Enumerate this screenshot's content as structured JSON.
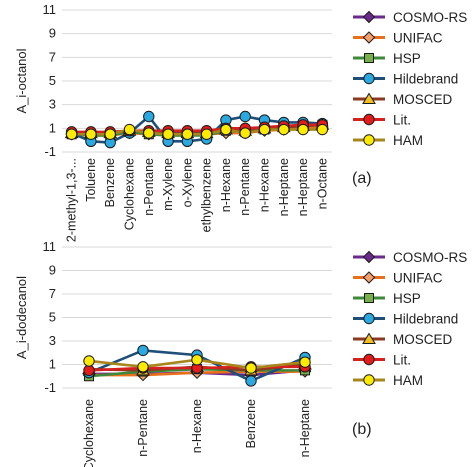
{
  "colors": {
    "COSMO-RS": "#6b2a8a",
    "UNIFAC": "#e8701a",
    "HSP": "#3f8a3a",
    "Hildebrand": "#1f4e79",
    "MOSCED": "#8b3a1f",
    "Lit.": "#d62020",
    "HAM": "#a8861c"
  },
  "chart_data": [
    {
      "type": "line",
      "panel_label": "(a)",
      "ylabel": "A_i-octanol",
      "ylim": [
        -1,
        11
      ],
      "yticks": [
        -1,
        1,
        3,
        5,
        7,
        9,
        11
      ],
      "grid": true,
      "legend": "right",
      "categories": [
        "2-methyl-1,3-...",
        "Toluene",
        "Benzene",
        "Cyclohexane",
        "n-Pentane",
        "m-Xylene",
        "o-Xylene",
        "ethylbenzene",
        "n-Hexane",
        "n-Pentane",
        "n-Hexane",
        "n-Heptane",
        "n-Heptane",
        "n-Octane"
      ],
      "series": [
        {
          "name": "COSMO-RS",
          "marker": "diamond",
          "fill": "#6b2a8a",
          "values": [
            0.6,
            0.5,
            0.5,
            0.7,
            0.6,
            0.5,
            0.6,
            0.6,
            0.8,
            0.7,
            0.9,
            1.0,
            1.1,
            1.2
          ]
        },
        {
          "name": "UNIFAC",
          "marker": "diamond",
          "fill": "#f4a06a",
          "values": [
            0.5,
            0.4,
            0.4,
            0.6,
            0.5,
            0.4,
            0.4,
            0.5,
            0.6,
            0.6,
            0.8,
            0.9,
            1.0,
            1.1
          ]
        },
        {
          "name": "HSP",
          "marker": "square",
          "fill": "#77b04a",
          "values": [
            0.5,
            0.4,
            0.4,
            0.7,
            0.5,
            0.4,
            0.4,
            0.4,
            0.8,
            0.7,
            0.9,
            1.1,
            1.2,
            1.3
          ]
        },
        {
          "name": "Hildebrand",
          "marker": "circle",
          "fill": "#29a9e0",
          "values": [
            0.6,
            -0.1,
            -0.2,
            0.6,
            2.0,
            -0.1,
            -0.1,
            0.1,
            1.7,
            2.0,
            1.7,
            1.5,
            1.5,
            1.4
          ]
        },
        {
          "name": "MOSCED",
          "marker": "triangle",
          "fill": "#f2c01e",
          "values": [
            0.6,
            0.6,
            0.6,
            0.8,
            0.7,
            0.6,
            0.6,
            0.6,
            0.9,
            0.8,
            1.0,
            1.1,
            1.2,
            1.3
          ]
        },
        {
          "name": "Lit.",
          "marker": "circle",
          "fill": "#e31b1b",
          "values": [
            0.7,
            0.7,
            0.7,
            0.8,
            0.8,
            0.8,
            0.8,
            0.8,
            1.0,
            1.0,
            1.1,
            1.2,
            1.3,
            1.3
          ]
        },
        {
          "name": "HAM",
          "marker": "circle",
          "fill": "#ffeb00",
          "values": [
            0.5,
            0.5,
            0.5,
            0.9,
            0.6,
            0.5,
            0.5,
            0.5,
            0.9,
            0.6,
            0.9,
            0.9,
            0.9,
            0.9
          ]
        }
      ]
    },
    {
      "type": "line",
      "panel_label": "(b)",
      "ylabel": "A_i-dodecanol",
      "ylim": [
        -1,
        11
      ],
      "yticks": [
        -1,
        1,
        3,
        5,
        7,
        9,
        11
      ],
      "grid": true,
      "legend": "right",
      "categories": [
        "Cyclohexane",
        "n-Pentane",
        "n-Hexane",
        "Benzene",
        "n-Heptane"
      ],
      "series": [
        {
          "name": "COSMO-RS",
          "marker": "diamond",
          "fill": "#6b2a8a",
          "values": [
            0.2,
            0.2,
            0.3,
            0.1,
            0.5
          ]
        },
        {
          "name": "UNIFAC",
          "marker": "diamond",
          "fill": "#f4a06a",
          "values": [
            0.1,
            0.1,
            0.3,
            0.4,
            0.4
          ]
        },
        {
          "name": "HSP",
          "marker": "square",
          "fill": "#77b04a",
          "values": [
            0.0,
            0.4,
            0.6,
            0.5,
            0.5
          ]
        },
        {
          "name": "Hildebrand",
          "marker": "circle",
          "fill": "#29a9e0",
          "values": [
            0.3,
            2.2,
            1.8,
            -0.4,
            1.6
          ]
        },
        {
          "name": "MOSCED",
          "marker": "triangle",
          "fill": "#f2c01e",
          "values": [
            0.6,
            0.5,
            0.8,
            0.5,
            1.0
          ]
        },
        {
          "name": "Lit.",
          "marker": "circle",
          "fill": "#e31b1b",
          "values": [
            0.5,
            0.7,
            0.7,
            0.8,
            0.8
          ]
        },
        {
          "name": "HAM",
          "marker": "circle",
          "fill": "#ffeb00",
          "values": [
            1.3,
            0.8,
            1.4,
            0.7,
            1.2
          ]
        }
      ]
    }
  ]
}
